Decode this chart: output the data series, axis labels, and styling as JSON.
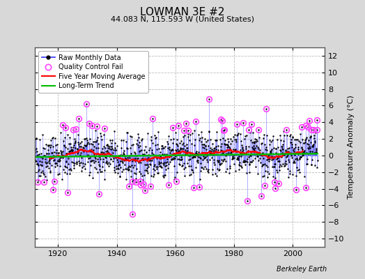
{
  "title": "LOWMAN 3E #2",
  "subtitle": "44.083 N, 115.593 W (United States)",
  "ylabel": "Temperature Anomaly (°C)",
  "credit": "Berkeley Earth",
  "xlim": [
    1912,
    2011
  ],
  "ylim": [
    -11,
    13
  ],
  "yticks": [
    -10,
    -8,
    -6,
    -4,
    -2,
    0,
    2,
    4,
    6,
    8,
    10,
    12
  ],
  "xticks": [
    1920,
    1940,
    1960,
    1980,
    2000
  ],
  "raw_color": "#4444ff",
  "dot_color": "#000000",
  "qc_color": "#ff44ff",
  "ma_color": "#ff0000",
  "trend_color": "#00bb00",
  "bg_color": "#d8d8d8",
  "plot_bg": "#ffffff",
  "grid_color": "#bbbbbb",
  "seed": 42,
  "start_year": 1912.0,
  "end_year": 2008.5,
  "n_months": 1150,
  "noise_std": 1.5,
  "ma_window": 60,
  "title_fontsize": 11,
  "subtitle_fontsize": 8,
  "tick_fontsize": 8,
  "ylabel_fontsize": 8,
  "legend_fontsize": 7,
  "credit_fontsize": 7
}
